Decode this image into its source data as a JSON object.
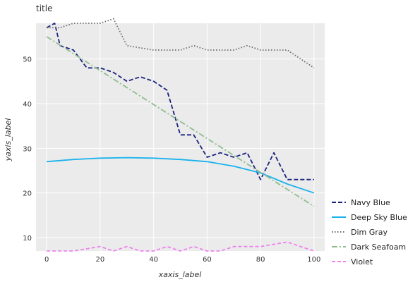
{
  "chart_data": {
    "type": "line",
    "title": "title",
    "xlabel": "xaxis_label",
    "ylabel": "yaxis_label",
    "xlim": [
      -4,
      104
    ],
    "ylim": [
      7,
      58
    ],
    "x_ticks": [
      0,
      20,
      40,
      60,
      80,
      100
    ],
    "y_ticks": [
      10,
      20,
      30,
      40,
      50
    ],
    "grid": true,
    "legend_position": "right",
    "x": [
      0,
      5,
      10,
      15,
      20,
      25,
      30,
      35,
      40,
      45,
      50,
      55,
      60,
      65,
      70,
      75,
      80,
      85,
      90,
      95,
      100
    ],
    "series": [
      {
        "name": "Navy Blue",
        "color": "#1a237e",
        "dash": "6,3",
        "values": [
          null,
          null,
          null,
          null,
          null,
          null,
          null,
          null,
          null,
          null,
          null,
          null,
          null,
          null,
          null,
          null,
          null,
          null,
          null,
          null,
          null
        ],
        "points": [
          [
            0,
            57
          ],
          [
            3,
            58
          ],
          [
            5,
            53
          ],
          [
            10,
            52
          ],
          [
            15,
            48
          ],
          [
            20,
            48
          ],
          [
            25,
            47
          ],
          [
            30,
            45
          ],
          [
            35,
            46
          ],
          [
            40,
            45
          ],
          [
            45,
            43
          ],
          [
            50,
            33
          ],
          [
            55,
            33
          ],
          [
            60,
            28
          ],
          [
            65,
            29
          ],
          [
            70,
            28
          ],
          [
            75,
            29
          ],
          [
            80,
            23
          ],
          [
            85,
            29
          ],
          [
            90,
            23
          ],
          [
            100,
            23
          ]
        ]
      },
      {
        "name": "Deep Sky Blue",
        "color": "#1ab2ec",
        "dash": "",
        "points": [
          [
            0,
            27
          ],
          [
            10,
            27.5
          ],
          [
            20,
            27.8
          ],
          [
            30,
            27.9
          ],
          [
            40,
            27.8
          ],
          [
            50,
            27.5
          ],
          [
            60,
            27
          ],
          [
            70,
            26
          ],
          [
            80,
            24.5
          ],
          [
            90,
            22
          ],
          [
            100,
            20
          ]
        ]
      },
      {
        "name": "Dim Gray",
        "color": "#696969",
        "dash": "1.5,2.5",
        "points": [
          [
            0,
            57
          ],
          [
            5,
            57
          ],
          [
            10,
            58
          ],
          [
            20,
            58
          ],
          [
            25,
            59
          ],
          [
            30,
            53
          ],
          [
            40,
            52
          ],
          [
            50,
            52
          ],
          [
            55,
            53
          ],
          [
            60,
            52
          ],
          [
            70,
            52
          ],
          [
            75,
            53
          ],
          [
            80,
            52
          ],
          [
            90,
            52
          ],
          [
            100,
            48
          ]
        ]
      },
      {
        "name": "Dark Seafoam",
        "color": "#8fbc8f",
        "dash": "8,3,2,3",
        "points": [
          [
            0,
            55
          ],
          [
            100,
            17
          ]
        ]
      },
      {
        "name": "Violet",
        "color": "#ee82ee",
        "dash": "5,3",
        "points": [
          [
            0,
            7
          ],
          [
            10,
            7
          ],
          [
            20,
            8
          ],
          [
            25,
            7
          ],
          [
            30,
            8
          ],
          [
            35,
            7
          ],
          [
            40,
            7
          ],
          [
            45,
            8
          ],
          [
            50,
            7
          ],
          [
            55,
            8
          ],
          [
            60,
            7
          ],
          [
            65,
            7
          ],
          [
            70,
            8
          ],
          [
            80,
            8
          ],
          [
            90,
            9
          ],
          [
            95,
            8
          ],
          [
            100,
            7
          ]
        ]
      }
    ]
  }
}
